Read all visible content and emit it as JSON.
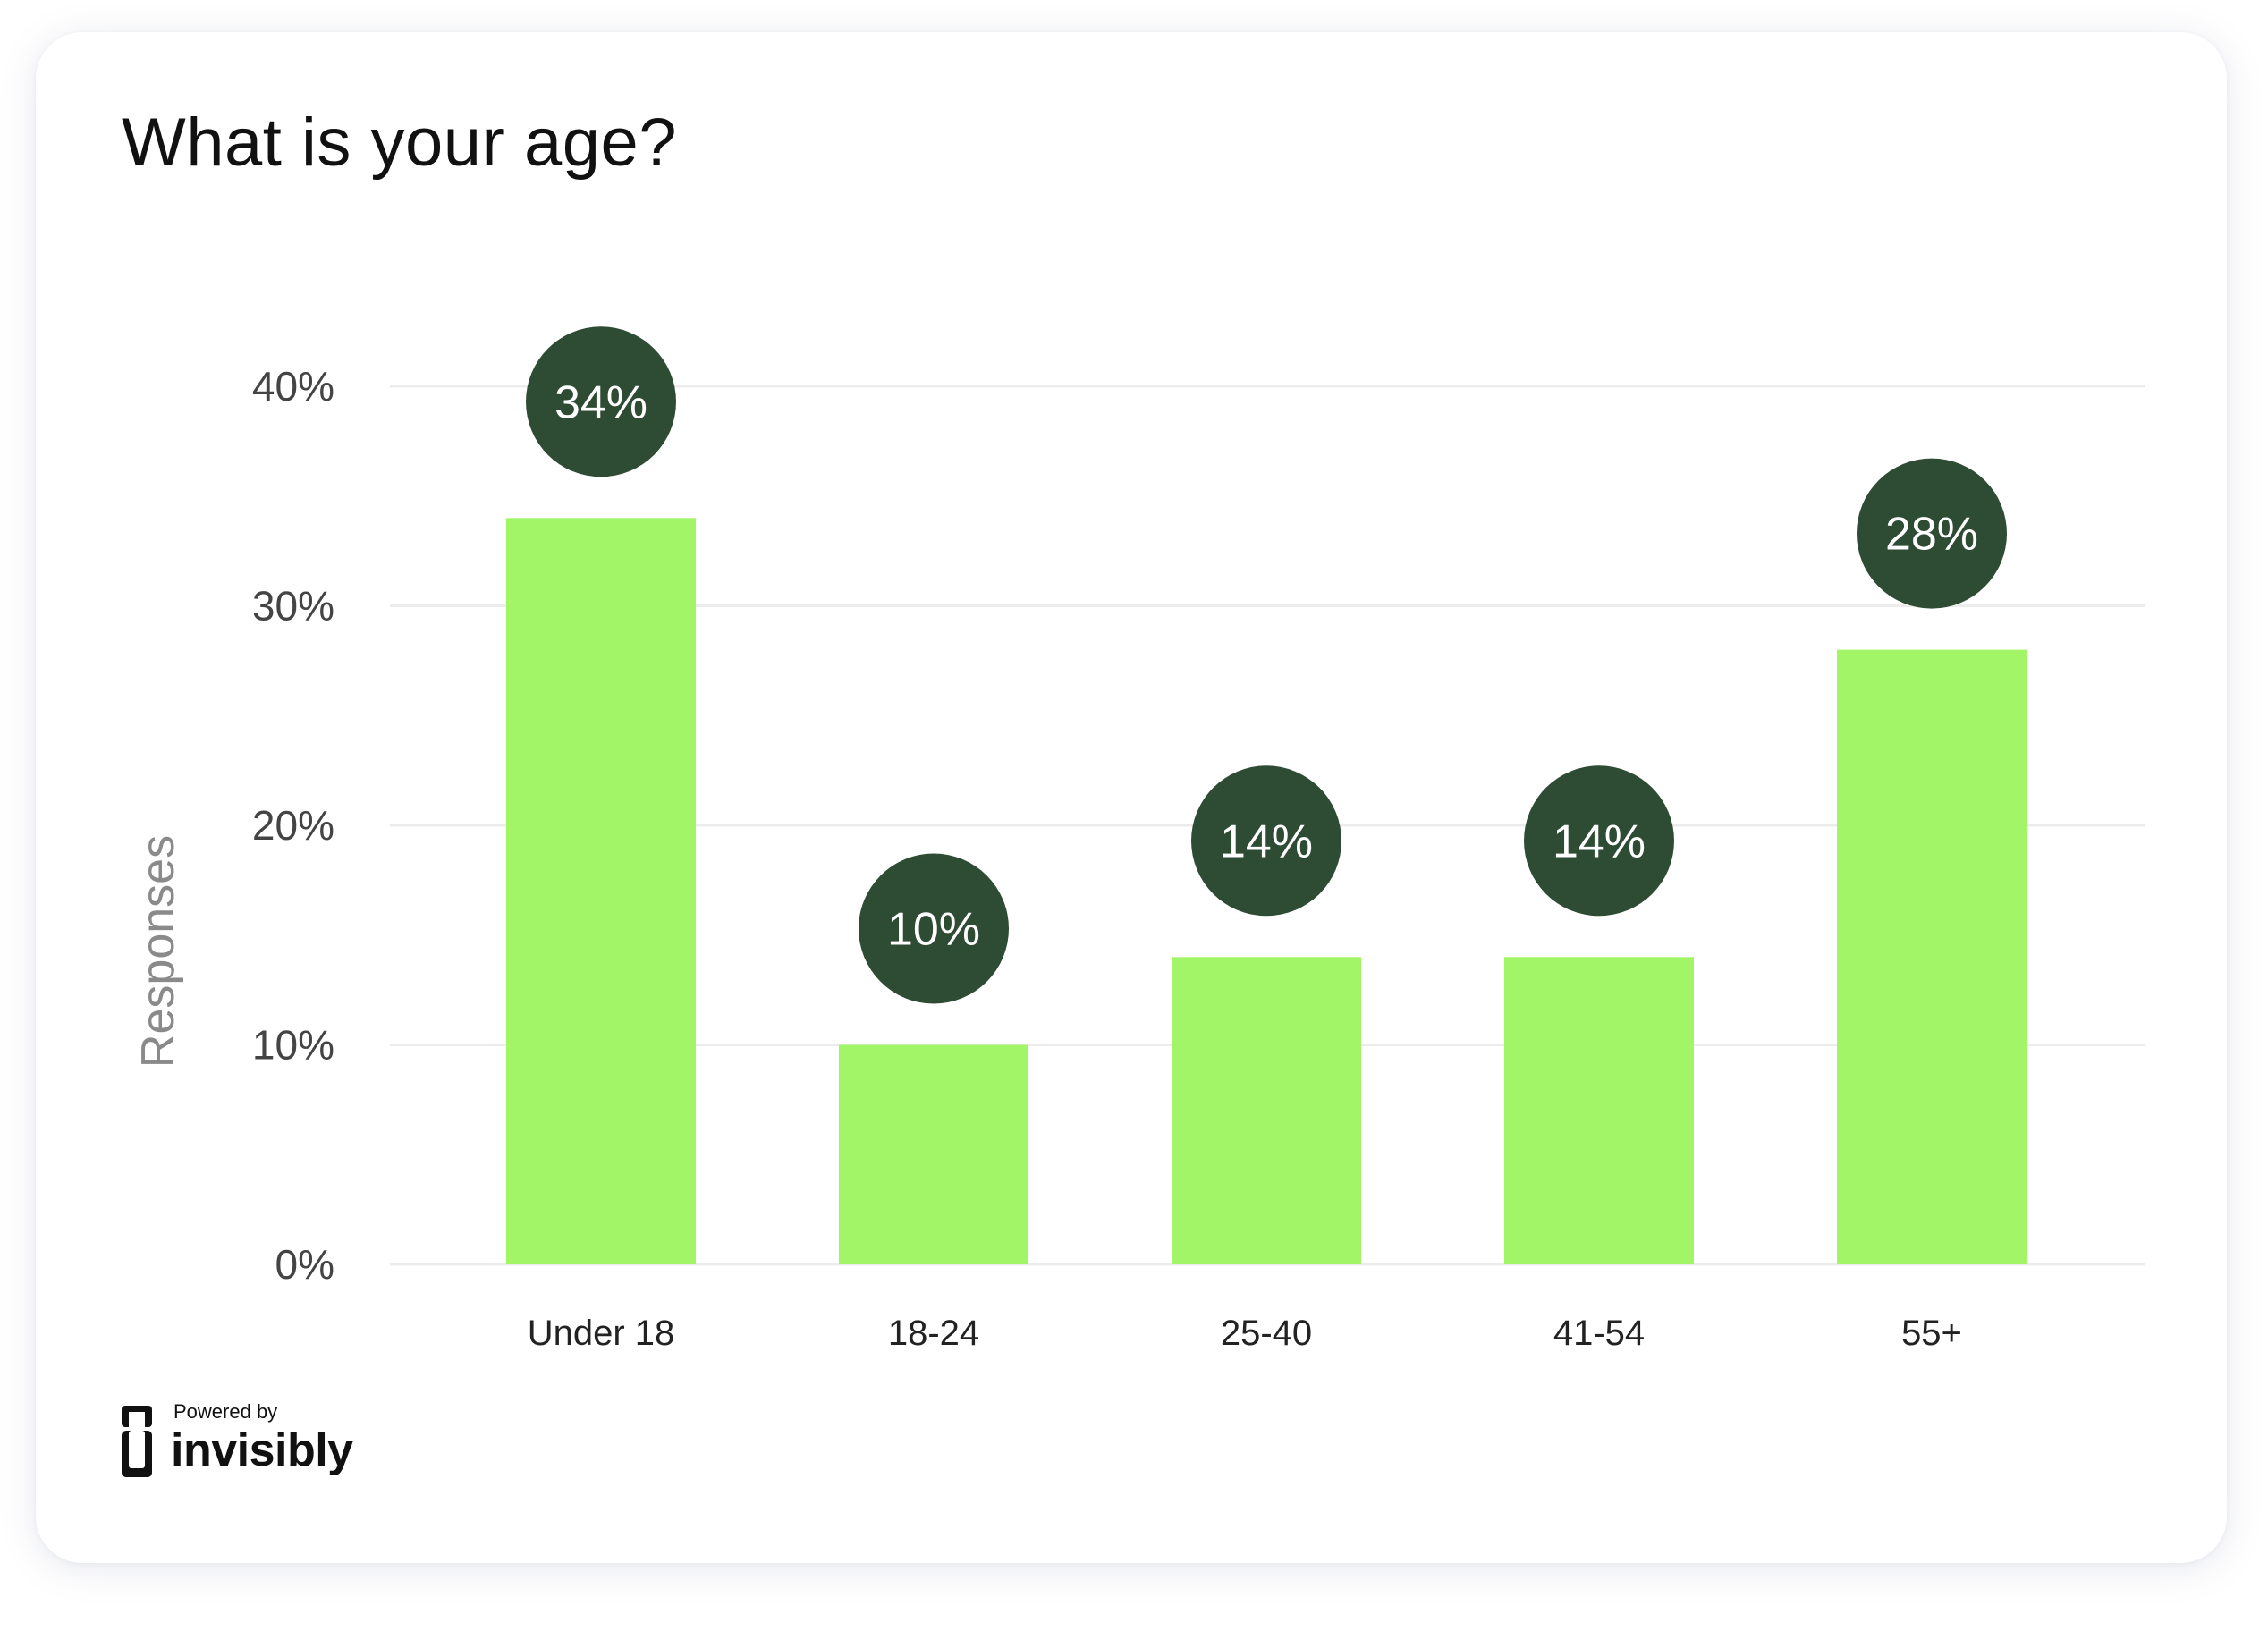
{
  "card": {
    "title": "What is your age?"
  },
  "chart_data": {
    "type": "bar",
    "categories": [
      "Under 18",
      "18-24",
      "25-40",
      "41-54",
      "55+"
    ],
    "values": [
      34,
      10,
      14,
      14,
      28
    ],
    "value_labels": [
      "34%",
      "10%",
      "14%",
      "14%",
      "28%"
    ],
    "title": "What is your age?",
    "xlabel": "",
    "ylabel": "Responses",
    "ylim": [
      0,
      40
    ],
    "yticks": [
      0,
      10,
      20,
      30,
      40
    ],
    "ytick_labels": [
      "0%",
      "10%",
      "20%",
      "30%",
      "40%"
    ],
    "grid": true,
    "legend": "none",
    "colors": {
      "bar": "#a2f566",
      "value_badge": "#2e4b33",
      "value_text": "#ffffff",
      "grid": "#ececec",
      "tick_text": "#444444",
      "axis_label": "#8a8a8a"
    }
  },
  "branding": {
    "powered_by": "Powered by",
    "name": "invisibly",
    "icon": "invisibly-logo-icon"
  }
}
